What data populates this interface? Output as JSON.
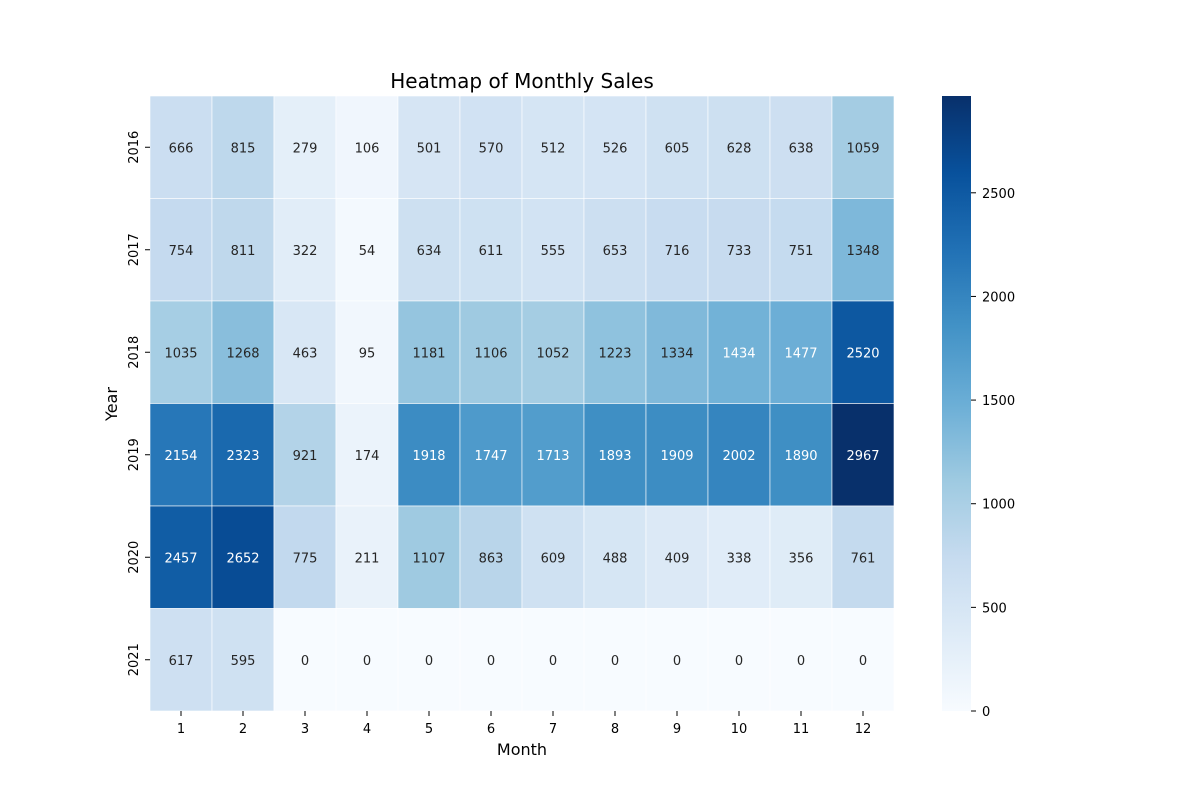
{
  "chart_data": {
    "type": "heatmap",
    "title": "Heatmap of Monthly Sales",
    "xlabel": "Month",
    "ylabel": "Year",
    "x_categories": [
      "1",
      "2",
      "3",
      "4",
      "5",
      "6",
      "7",
      "8",
      "9",
      "10",
      "11",
      "12"
    ],
    "y_categories": [
      "2016",
      "2017",
      "2018",
      "2019",
      "2020",
      "2021"
    ],
    "values": [
      [
        666,
        815,
        279,
        106,
        501,
        570,
        512,
        526,
        605,
        628,
        638,
        1059
      ],
      [
        754,
        811,
        322,
        54,
        634,
        611,
        555,
        653,
        716,
        733,
        751,
        1348
      ],
      [
        1035,
        1268,
        463,
        95,
        1181,
        1106,
        1052,
        1223,
        1334,
        1434,
        1477,
        2520
      ],
      [
        2154,
        2323,
        921,
        174,
        1918,
        1747,
        1713,
        1893,
        1909,
        2002,
        1890,
        2967
      ],
      [
        2457,
        2652,
        775,
        211,
        1107,
        863,
        609,
        488,
        409,
        338,
        356,
        761
      ],
      [
        617,
        595,
        0,
        0,
        0,
        0,
        0,
        0,
        0,
        0,
        0,
        0
      ]
    ],
    "colormap": "Blues",
    "vmin": 0,
    "vmax": 2967,
    "colorbar_ticks": [
      0,
      500,
      1000,
      1500,
      2000,
      2500
    ],
    "annotations": true,
    "grid_line_color": "#ffffff"
  }
}
